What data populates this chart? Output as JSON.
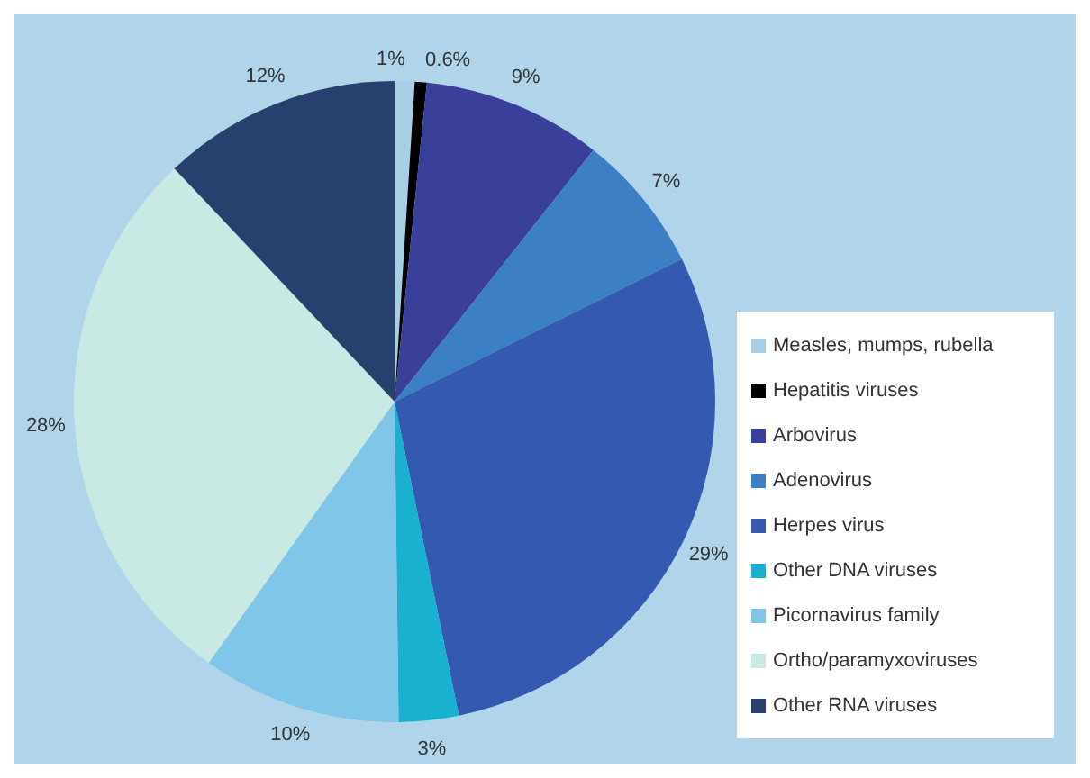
{
  "chart_data": {
    "type": "pie",
    "categories": [
      "Measles, mumps, rubella",
      "Hepatitis viruses",
      "Arbovirus",
      "Adenovirus",
      "Herpes virus",
      "Other DNA viruses",
      "Picornavirus family",
      "Ortho/paramyxoviruses",
      "Other RNA viruses"
    ],
    "values": [
      1,
      0.6,
      9,
      7,
      29,
      3,
      10,
      28,
      12
    ],
    "value_labels": [
      "1%",
      "0.6%",
      "9%",
      "7%",
      "29%",
      "3%",
      "10%",
      "28%",
      "12%"
    ],
    "colors": [
      "#a9cfe6",
      "#000000",
      "#3a3f9a",
      "#3d7fc4",
      "#3359b0",
      "#1ab0d0",
      "#7fc6e8",
      "#c8e9e4",
      "#27406e"
    ],
    "legend": "right"
  }
}
